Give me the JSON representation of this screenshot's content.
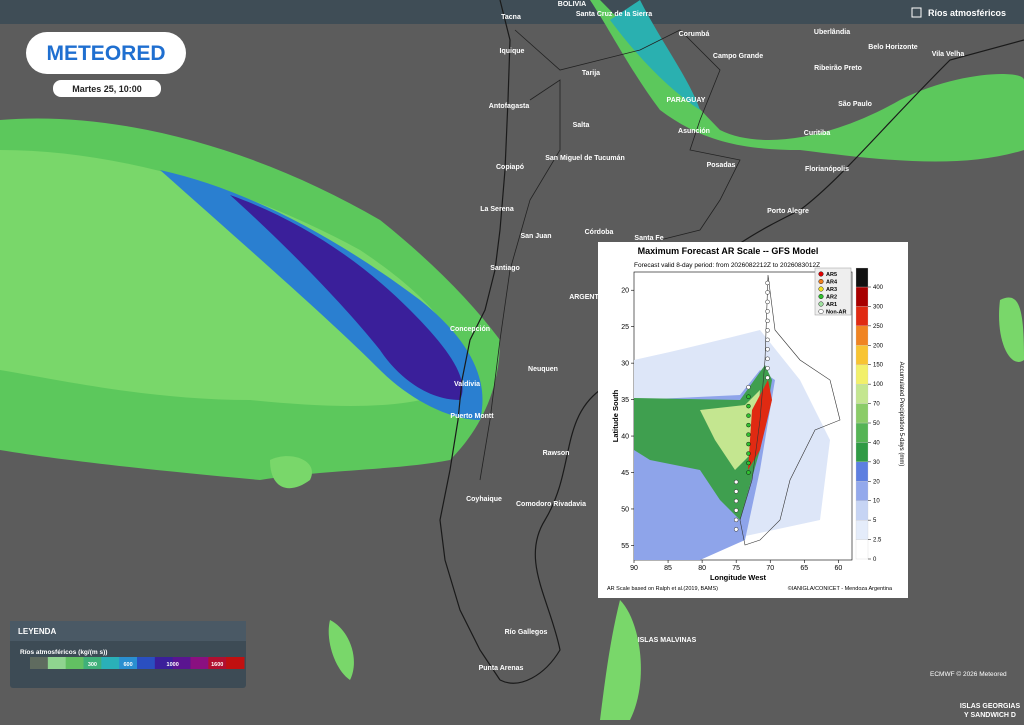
{
  "header": {
    "logo": "METEORED",
    "datetime": "Martes 25, 10:00",
    "layer": "Ríos atmosféricos"
  },
  "cities": [
    "BOLIVIA",
    "Tacna",
    "Santa Cruz de la Sierra",
    "Corumbá",
    "Uberlândia",
    "Belo Horizonte",
    "Vila Velha",
    "Iquique",
    "Campo Grande",
    "Tarija",
    "Ribeirão Preto",
    "PARAGUAY",
    "Antofagasta",
    "São Paulo",
    "Salta",
    "Asunción",
    "Curitiba",
    "San Miguel de Tucumán",
    "Copiapó",
    "Posadas",
    "Florianópolis",
    "La Serena",
    "Porto Alegre",
    "San Juan",
    "Córdoba",
    "Santa Fe",
    "Santiago",
    "ARGENTINA",
    "Concepción",
    "Neuquen",
    "Valdivia",
    "Puerto Montt",
    "Rawson",
    "Coyhaique",
    "Comodoro Rivadavia",
    "Río Gallegos",
    "ISLAS MALVINAS",
    "Punta Arenas",
    "ISLAS GEORGIAS",
    "Y SANDWICH D"
  ],
  "legend": {
    "title": "LEYENDA",
    "subtitle": "Ríos atmosféricos (kg/(m s))",
    "labels": [
      "300",
      "600",
      "1000",
      "1600"
    ],
    "colors": [
      "#5f6b5f",
      "#8fd48f",
      "#62c062",
      "#3fb07a",
      "#2ab0b8",
      "#2a8fd0",
      "#2a4fc0",
      "#3b1f9a",
      "#5a1590",
      "#8a1080",
      "#b01030",
      "#c01010"
    ]
  },
  "inset": {
    "title": "Maximum Forecast AR Scale -- GFS Model",
    "subtitle": "Forecast valid 8-day period: from 2026082212Z to 2026083012Z",
    "xlabel": "Longitude West",
    "ylabel": "Latitude South",
    "colorbar_label": "Accumulated Precipitation 5-days (mm)",
    "xlim": [
      90,
      58
    ],
    "ylim": [
      17.5,
      57
    ],
    "xticks": [
      90,
      85,
      80,
      75,
      70,
      65,
      60
    ],
    "yticks": [
      20,
      25,
      30,
      35,
      40,
      45,
      50,
      55
    ],
    "colorbar_ticks": [
      0,
      2.5,
      5,
      10,
      20,
      30,
      40,
      50,
      70,
      100,
      150,
      200,
      250,
      300,
      400
    ],
    "colorbar_colors": [
      "#ffffff",
      "#e4ecfa",
      "#c6d4f4",
      "#93a9ec",
      "#5d7fe0",
      "#2f9a45",
      "#55b455",
      "#8bcc68",
      "#c4e690",
      "#f2f06a",
      "#f8c432",
      "#f08422",
      "#e02a12",
      "#a80000",
      "#111111"
    ],
    "ar_legend": [
      {
        "name": "AR5",
        "color": "#e00000"
      },
      {
        "name": "AR4",
        "color": "#f08020"
      },
      {
        "name": "AR3",
        "color": "#f0e020"
      },
      {
        "name": "AR2",
        "color": "#30c030"
      },
      {
        "name": "AR1",
        "color": "#a0e0a0"
      },
      {
        "name": "Non-AR",
        "color": "#ffffff"
      }
    ],
    "footer_left": "AR Scale based on Ralph et al.(2019, BAMS)",
    "footer_right": "©IANIGLA/CONICET - Mendoza Argentina"
  },
  "credit": "ECMWF © 2026 Meteored"
}
